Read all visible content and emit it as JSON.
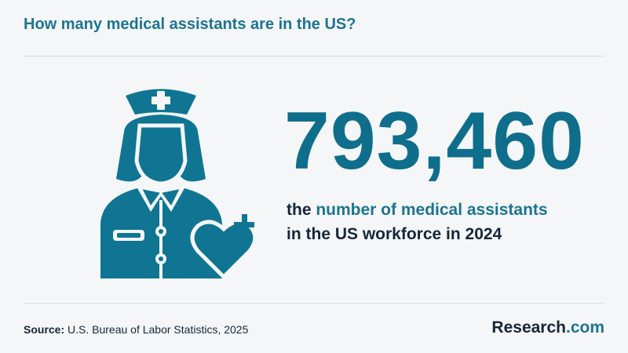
{
  "header": {
    "title": "How many medical assistants are in the US?"
  },
  "stat": {
    "number": "793,460",
    "caption": {
      "lead": "the",
      "highlight": "number of medical assistants",
      "rest": "in the US workforce in 2024"
    }
  },
  "footer": {
    "source_label": "Source:",
    "source": "U.S. Bureau of Labor Statistics, 2025",
    "logo": {
      "main": "Research",
      "suffix": ".com"
    }
  }
}
